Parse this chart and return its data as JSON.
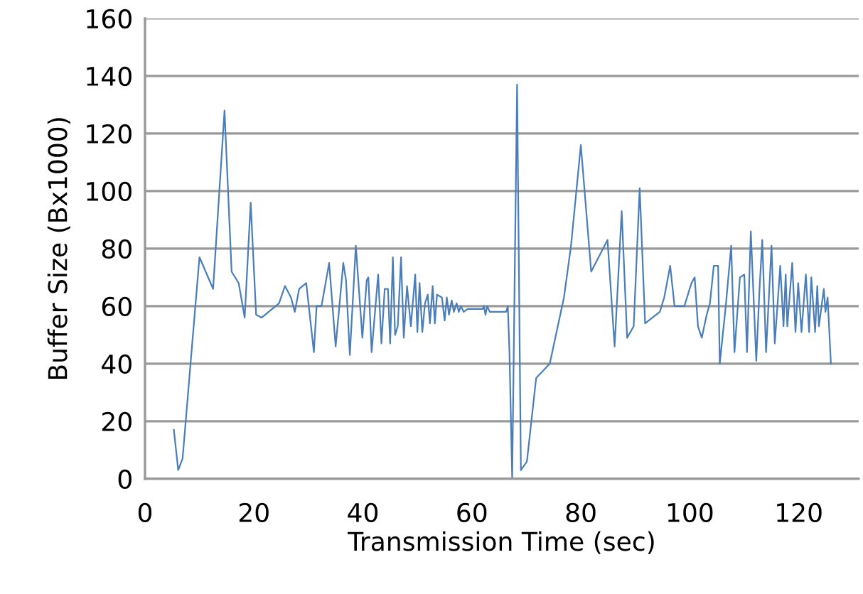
{
  "chart_data": {
    "type": "line",
    "xlabel": "Transmission Time (sec)",
    "ylabel": "Buffer Size (Bx1000)",
    "xlim": [
      0,
      131
    ],
    "xticks": [
      0,
      20,
      40,
      60,
      80,
      100,
      120
    ],
    "ylim": [
      0,
      160
    ],
    "yticks": [
      0,
      20,
      40,
      60,
      80,
      100,
      120,
      140,
      160
    ],
    "grid": "y",
    "marker": "none",
    "line_style": "solid",
    "series": [
      {
        "color": "#4a7ebb",
        "x": [
          5.3,
          6.1,
          6.9,
          10.0,
          12.5,
          14.6,
          15.9,
          17.2,
          18.3,
          19.4,
          20.4,
          21.4,
          24.6,
          25.7,
          26.8,
          27.5,
          28.3,
          29.6,
          31.0,
          31.5,
          32.4,
          33.8,
          35.0,
          36.4,
          36.9,
          37.6,
          38.7,
          39.9,
          40.7,
          41.0,
          41.6,
          42.8,
          43.4,
          44.0,
          44.6,
          45.0,
          45.5,
          45.9,
          46.4,
          47.0,
          47.5,
          48.1,
          48.8,
          49.6,
          50.0,
          50.4,
          50.9,
          51.4,
          51.9,
          52.3,
          52.8,
          53.2,
          53.6,
          54.5,
          55.0,
          55.4,
          55.8,
          56.3,
          56.7,
          57.2,
          57.6,
          58.0,
          58.5,
          59.2,
          62.0,
          62.2,
          62.5,
          62.8,
          63.3,
          66.3,
          66.6,
          66.9,
          67.4,
          68.3,
          69.0,
          70.1,
          71.8,
          74.3,
          76.9,
          78.2,
          80.0,
          81.9,
          84.9,
          86.2,
          87.5,
          88.5,
          89.7,
          90.8,
          91.8,
          94.5,
          95.3,
          96.4,
          97.2,
          99.0,
          100.3,
          100.9,
          101.5,
          102.2,
          103.1,
          103.7,
          104.4,
          105.2,
          105.5,
          106.6,
          107.6,
          108.2,
          109.2,
          110.0,
          110.5,
          111.2,
          112.2,
          112.8,
          113.3,
          114.0,
          115.0,
          115.6,
          116.6,
          117.2,
          117.6,
          117.9,
          118.8,
          119.4,
          119.9,
          120.5,
          121.3,
          121.9,
          122.3,
          123.0,
          123.4,
          123.7,
          124.6,
          124.9,
          125.3,
          125.9
        ],
        "values": [
          17,
          3,
          7,
          77,
          66,
          128,
          72,
          68,
          56,
          96,
          57,
          56,
          61,
          67,
          63,
          58,
          66,
          68,
          44,
          60,
          60,
          75,
          46,
          75,
          69,
          43,
          81,
          49,
          69,
          70,
          44,
          71,
          47,
          66,
          66,
          47,
          77,
          50,
          53,
          77,
          49,
          67,
          53,
          71,
          51,
          68,
          51,
          61,
          64,
          54,
          67,
          54,
          64,
          63,
          55,
          63,
          57,
          62,
          58,
          61,
          58,
          60,
          58,
          59,
          59,
          60,
          57,
          60,
          58,
          58,
          60,
          44,
          0,
          137,
          3,
          6,
          35,
          40,
          63,
          81,
          116,
          72,
          83,
          46,
          93,
          49,
          53,
          101,
          54,
          58,
          63,
          74,
          60,
          60,
          68,
          70,
          53,
          49,
          57,
          61,
          74,
          74,
          40,
          60,
          81,
          44,
          70,
          71,
          44,
          86,
          41,
          66,
          83,
          44,
          81,
          47,
          74,
          53,
          71,
          53,
          75,
          51,
          68,
          51,
          71,
          51,
          70,
          51,
          67,
          53,
          66,
          58,
          63,
          40
        ]
      }
    ]
  }
}
